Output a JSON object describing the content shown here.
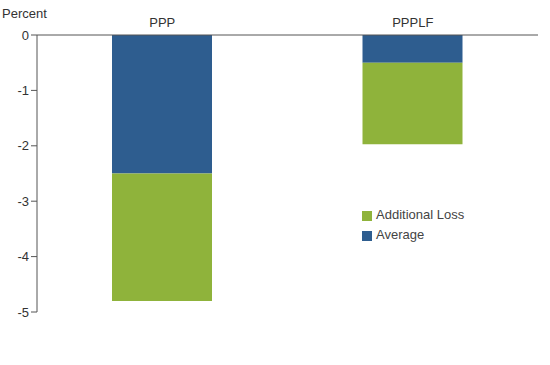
{
  "chart_data": {
    "type": "bar",
    "ylabel": "Percent",
    "categories": [
      "PPP",
      "PPPLF"
    ],
    "series": [
      {
        "name": "Average",
        "color": "#2e5d8f",
        "values": [
          -2.5,
          -0.5
        ]
      },
      {
        "name": "Additional Loss",
        "color": "#8fb33b",
        "values": [
          -2.3,
          -1.47
        ]
      }
    ],
    "ylim": [
      -5,
      0
    ],
    "yticks": [
      0,
      -1,
      -2,
      -3,
      -4,
      -5
    ],
    "stacked": true,
    "legend": "right",
    "grid": false
  }
}
